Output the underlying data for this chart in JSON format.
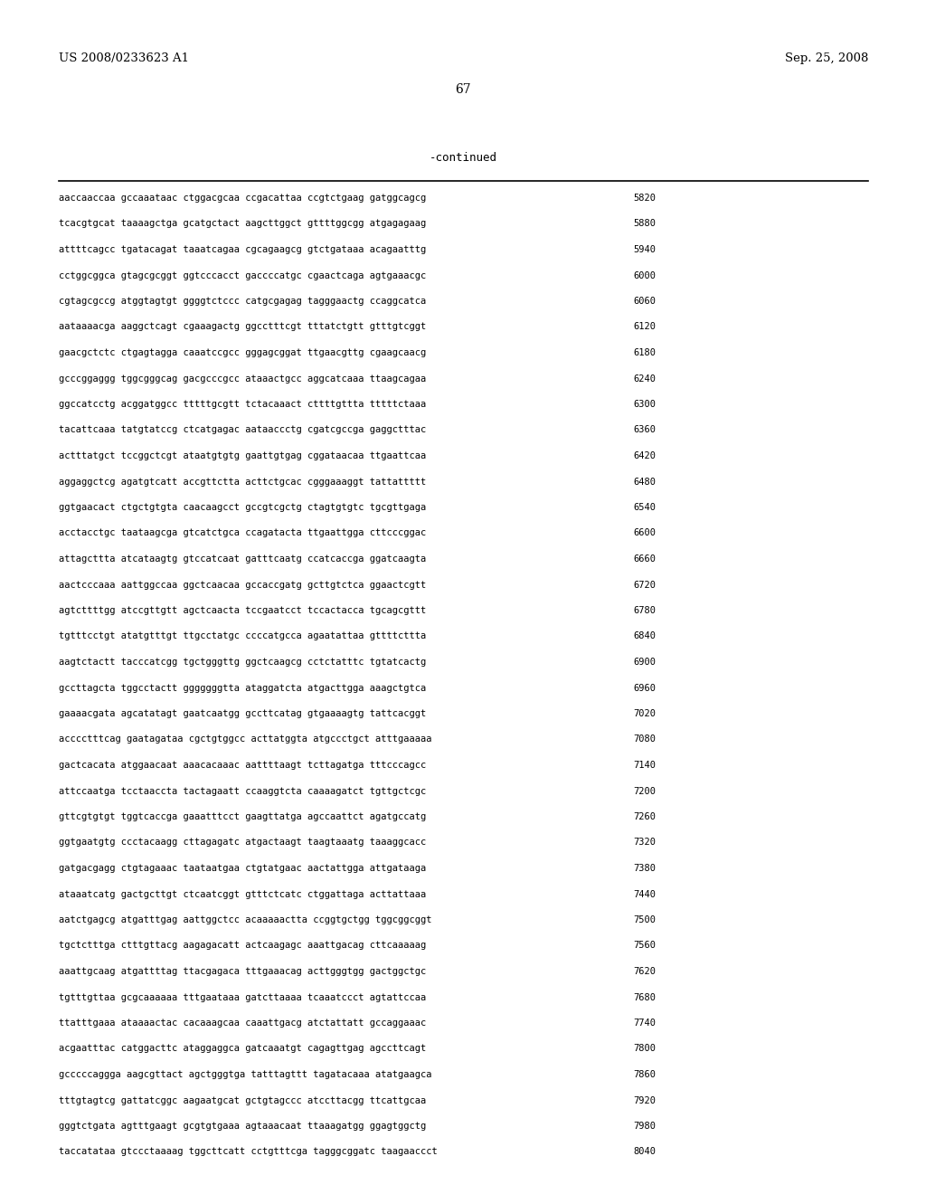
{
  "header_left": "US 2008/0233623 A1",
  "header_right": "Sep. 25, 2008",
  "page_number": "67",
  "continued_label": "-continued",
  "background_color": "#ffffff",
  "text_color": "#000000",
  "font_size": 7.5,
  "header_font_size": 9.5,
  "page_num_font_size": 10,
  "continued_font_size": 9,
  "sequence_lines": [
    [
      "aaccaaccaa",
      "gccaaataac",
      "ctggacgcaa",
      "ccgacattaa",
      "ccgtctgaag",
      "gatggcagcg",
      "5820"
    ],
    [
      "tcacgtgcat",
      "taaaagctga",
      "gcatgctact",
      "aagcttggct",
      "gttttggcgg",
      "atgagagaag",
      "5880"
    ],
    [
      "attttcagcc",
      "tgatacagat",
      "taaatcagaa",
      "cgcagaagcg",
      "gtctgataaa",
      "acagaatttg",
      "5940"
    ],
    [
      "cctggcggca",
      "gtagcgcggt",
      "ggtcccacct",
      "gaccccatgc",
      "cgaactcaga",
      "agtgaaacgc",
      "6000"
    ],
    [
      "cgtagcgccg",
      "atggtagtgt",
      "ggggtctccc",
      "catgcgagag",
      "tagggaactg",
      "ccaggcatca",
      "6060"
    ],
    [
      "aataaaacga",
      "aaggctcagt",
      "cgaaagactg",
      "ggcctttcgt",
      "tttatctgtt",
      "gtttgtcggt",
      "6120"
    ],
    [
      "gaacgctctc",
      "ctgagtagga",
      "caaatccgcc",
      "gggagcggat",
      "ttgaacgttg",
      "cgaagcaacg",
      "6180"
    ],
    [
      "gcccggaggg",
      "tggcgggcag",
      "gacgcccgcc",
      "ataaactgcc",
      "aggcatcaaa",
      "ttaagcagaa",
      "6240"
    ],
    [
      "ggccatcctg",
      "acggatggcc",
      "tttttgcgtt",
      "tctacaaact",
      "cttttgttta",
      "tttttctaaa",
      "6300"
    ],
    [
      "tacattcaaa",
      "tatgtatccg",
      "ctcatgagac",
      "aataaccctg",
      "cgatcgccga",
      "gaggctttac",
      "6360"
    ],
    [
      "actttatgct",
      "tccggctcgt",
      "ataatgtgtg",
      "gaattgtgag",
      "cggataacaa",
      "ttgaattcaa",
      "6420"
    ],
    [
      "aggaggctcg",
      "agatgtcatt",
      "accgttctta",
      "acttctgcac",
      "cgggaaaggt",
      "tattattttt",
      "6480"
    ],
    [
      "ggtgaacact",
      "ctgctgtgta",
      "caacaagcct",
      "gccgtcgctg",
      "ctagtgtgtc",
      "tgcgttgaga",
      "6540"
    ],
    [
      "acctacctgc",
      "taataagcga",
      "gtcatctgca",
      "ccagatacta",
      "ttgaattgga",
      "cttcccggac",
      "6600"
    ],
    [
      "attagcttta",
      "atcataagtg",
      "gtccatcaat",
      "gatttcaatg",
      "ccatcaccga",
      "ggatcaagta",
      "6660"
    ],
    [
      "aactcccaaa",
      "aattggccaa",
      "ggctcaacaa",
      "gccaccgatg",
      "gcttgtctca",
      "ggaactcgtt",
      "6720"
    ],
    [
      "agtcttttgg",
      "atccgttgtt",
      "agctcaacta",
      "tccgaatcct",
      "tccactacca",
      "tgcagcgttt",
      "6780"
    ],
    [
      "tgtttcctgt",
      "atatgtttgt",
      "ttgcctatgc",
      "ccccatgcca",
      "agaatattaa",
      "gttttcttta",
      "6840"
    ],
    [
      "aagtctactt",
      "tacccatcgg",
      "tgctgggttg",
      "ggctcaagcg",
      "cctctatttc",
      "tgtatcactg",
      "6900"
    ],
    [
      "gccttagcta",
      "tggcctactt",
      "gggggggtta",
      "ataggatcta",
      "atgacttgga",
      "aaagctgtca",
      "6960"
    ],
    [
      "gaaaacgata",
      "agcatatagt",
      "gaatcaatgg",
      "gccttcatag",
      "gtgaaaagtg",
      "tattcacggt",
      "7020"
    ],
    [
      "acccctttcag",
      "gaatagataa",
      "cgctgtggcc",
      "acttatggta",
      "atgccctgct",
      "atttgaaaaa",
      "7080"
    ],
    [
      "gactcacata",
      "atggaacaat",
      "aaacacaaac",
      "aattttaagt",
      "tcttagatga",
      "tttcccagcc",
      "7140"
    ],
    [
      "attccaatga",
      "tcctaaccta",
      "tactagaatt",
      "ccaaggtcta",
      "caaaagatct",
      "tgttgctcgc",
      "7200"
    ],
    [
      "gttcgtgtgt",
      "tggtcaccga",
      "gaaatttcct",
      "gaagttatga",
      "agccaattct",
      "agatgccatg",
      "7260"
    ],
    [
      "ggtgaatgtg",
      "ccctacaagg",
      "cttagagatc",
      "atgactaagt",
      "taagtaaatg",
      "taaaggcacc",
      "7320"
    ],
    [
      "gatgacgagg",
      "ctgtagaaac",
      "taataatgaa",
      "ctgtatgaac",
      "aactattgga",
      "attgataaga",
      "7380"
    ],
    [
      "ataaatcatg",
      "gactgcttgt",
      "ctcaatcggt",
      "gtttctcatc",
      "ctggattaga",
      "acttattaaa",
      "7440"
    ],
    [
      "aatctgagcg",
      "atgatttgag",
      "aattggctcc",
      "acaaaaactta",
      "ccggtgctgg",
      "tggcggcggt",
      "7500"
    ],
    [
      "tgctctttga",
      "ctttgttacg",
      "aagagacatt",
      "actcaagagc",
      "aaattgacag",
      "cttcaaaaag",
      "7560"
    ],
    [
      "aaattgcaag",
      "atgattttag",
      "ttacgagaca",
      "tttgaaacag",
      "acttgggtgg",
      "gactggctgc",
      "7620"
    ],
    [
      "tgtttgttaa",
      "gcgcaaaaaa",
      "tttgaataaa",
      "gatcttaaaa",
      "tcaaatccct",
      "agtattccaa",
      "7680"
    ],
    [
      "ttatttgaaa",
      "ataaaactac",
      "cacaaagcaa",
      "caaattgacg",
      "atctattatt",
      "gccaggaaac",
      "7740"
    ],
    [
      "acgaatttac",
      "catggacttc",
      "ataggaggca",
      "gatcaaatgt",
      "cagagttgag",
      "agccttcagt",
      "7800"
    ],
    [
      "gcccccaggga",
      "aagcgttact",
      "agctgggtga",
      "tatttagttt",
      "tagatacaaa",
      "atatgaagca",
      "7860"
    ],
    [
      "tttgtagtcg",
      "gattatcggc",
      "aagaatgcat",
      "gctgtagccc",
      "atccttacgg",
      "ttcattgcaa",
      "7920"
    ],
    [
      "gggtctgata",
      "agtttgaagt",
      "gcgtgtgaaa",
      "agtaaacaat",
      "ttaaagatgg",
      "ggagtggctg",
      "7980"
    ],
    [
      "taccatataa",
      "gtccctaaaag",
      "tggcttcatt",
      "cctgtttcga",
      "tagggcggatc",
      "taagaaccct",
      "8040"
    ]
  ]
}
